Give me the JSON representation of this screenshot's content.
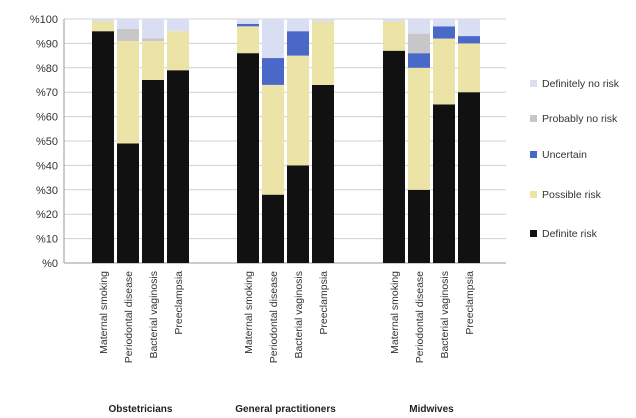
{
  "chart_data": {
    "type": "bar",
    "stacked": true,
    "y_axis": {
      "ticks": [
        "%0",
        "%10",
        "%20",
        "%30",
        "%40",
        "%50",
        "%60",
        "%70",
        "%80",
        "%90",
        "%100"
      ],
      "ylim": [
        0,
        100
      ],
      "grid": true
    },
    "groups": [
      {
        "name": "Obstetricians",
        "categories": [
          "Maternal smoking",
          "Periodontal disease",
          "Bacterial vaginosis",
          "Preeclampsia"
        ]
      },
      {
        "name": "General practitioners",
        "categories": [
          "Maternal smoking",
          "Periodontal disease",
          "Bacterial vaginosis",
          "Preeclampsia"
        ]
      },
      {
        "name": "Midwives",
        "categories": [
          "Maternal smoking",
          "Periodontal disease",
          "Bacterial vaginosis",
          "Preeclampsia"
        ]
      }
    ],
    "series": [
      {
        "name": "Definite risk",
        "color": "#111111",
        "values": [
          95,
          49,
          75,
          79,
          86,
          28,
          40,
          73,
          87,
          30,
          65,
          70
        ]
      },
      {
        "name": "Possible risk",
        "color": "#ece3a6",
        "values": [
          4,
          42,
          16,
          16,
          11,
          45,
          45,
          26,
          12,
          50,
          27,
          20
        ]
      },
      {
        "name": "Uncertain",
        "color": "#4a68c8",
        "values": [
          0,
          0,
          0,
          0,
          1,
          11,
          10,
          0,
          0,
          6,
          5,
          3
        ]
      },
      {
        "name": "Probably no risk",
        "color": "#c7c7c7",
        "values": [
          0,
          5,
          1,
          0,
          0,
          0,
          0,
          0,
          0,
          8,
          0,
          0
        ]
      },
      {
        "name": "Definitely no risk",
        "color": "#d9def2",
        "values": [
          1,
          4,
          8,
          5,
          2,
          16,
          5,
          1,
          1,
          6,
          3,
          7
        ]
      }
    ],
    "legend": {
      "position": "right",
      "entries": [
        "Definitely no risk",
        "Probably no risk",
        "Uncertain",
        "Possible risk",
        "Definite risk"
      ]
    }
  }
}
